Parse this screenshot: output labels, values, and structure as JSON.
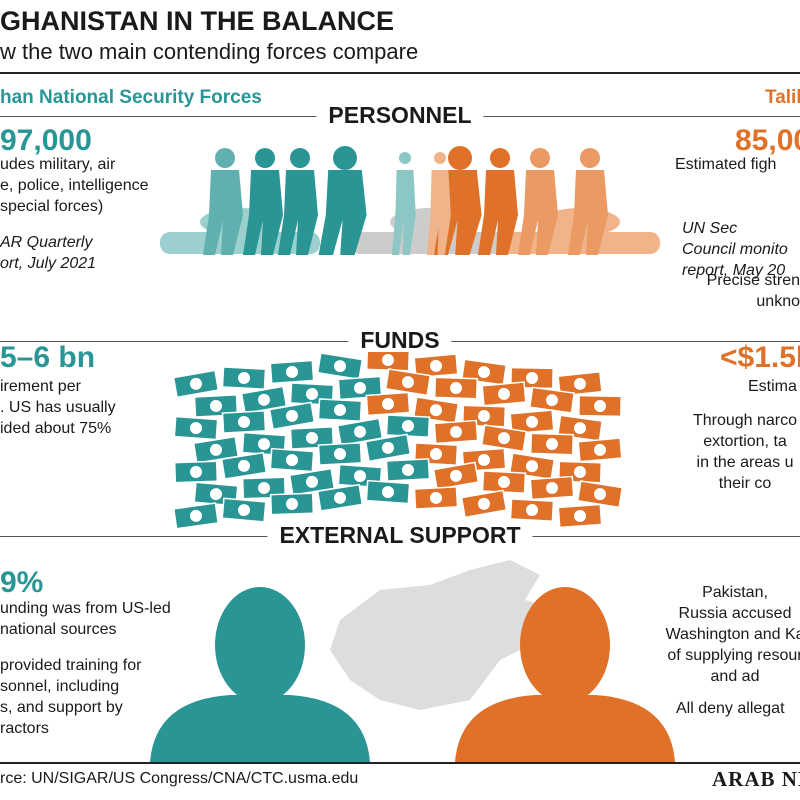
{
  "header": {
    "title": "GHANISTAN IN THE BALANCE",
    "subtitle": "w the two main contending forces compare"
  },
  "sides": {
    "left": "han National Security Forces",
    "right": "Talil"
  },
  "sections": [
    {
      "heading": "PERSONNEL",
      "left": {
        "figure": "97,000",
        "lines": [
          "udes military, air",
          "e, police, intelligence",
          "special forces)"
        ],
        "source": [
          "AR Quarterly",
          "ort, July 2021"
        ]
      },
      "right": {
        "figure": "85,00",
        "lines": [
          "Estimated  figh"
        ],
        "source": [
          "UN Sec",
          "Council monito",
          "report, May 20"
        ],
        "note": [
          "Precise stren",
          "unkno"
        ]
      }
    },
    {
      "heading": "FUNDS",
      "left": {
        "figure": "5–6 bn",
        "lines": [
          "irement per",
          ". US has usually",
          "ided about 75%"
        ]
      },
      "right": {
        "figure": "<$1.5b",
        "lines": [
          "Estima"
        ],
        "note": [
          "Through narco",
          "extortion, ta",
          "in the areas u",
          "their co"
        ]
      }
    },
    {
      "heading": "EXTERNAL SUPPORT",
      "left": {
        "figure": "9%",
        "lines": [
          "unding was from US-led",
          "national sources"
        ],
        "note": [
          "provided training for",
          "sonnel, including",
          "s, and support by",
          "ractors"
        ]
      },
      "right": {
        "lines": [
          "Pakistan,",
          "Russia accused",
          "Washington and Ka",
          "of supplying resour",
          "and ad"
        ],
        "note": [
          "All deny allegat"
        ]
      }
    }
  ],
  "footer": {
    "source": "rce: UN/SIGAR/US Congress/CNA/CTC.usma.edu",
    "brand": "ARAB NE"
  }
}
